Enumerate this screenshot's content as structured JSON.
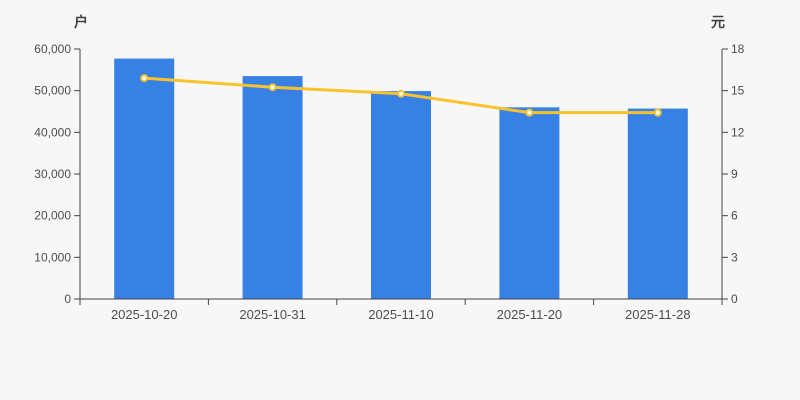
{
  "axes_units": {
    "left": "户",
    "right": "元"
  },
  "left_tick_labels": [
    "0",
    "10,000",
    "20,000",
    "30,000",
    "40,000",
    "50,000",
    "60,000"
  ],
  "right_tick_labels": [
    "0",
    "3",
    "6",
    "9",
    "12",
    "15",
    "18"
  ],
  "colors": {
    "background": "#f7f7f7",
    "bar": "#3780e4",
    "line": "#f9c22e",
    "marker_fill": "#ffffff",
    "axis": "#444444",
    "text": "#4d4d4d"
  },
  "chart_data": {
    "type": "bar",
    "subtype": "bar-line-combo",
    "categories": [
      "2025-10-20",
      "2025-10-31",
      "2025-11-10",
      "2025-11-20",
      "2025-11-28"
    ],
    "series": [
      {
        "name": "households",
        "type": "bar",
        "axis": "left",
        "unit": "户",
        "color": "#3780e4",
        "values": [
          57700,
          53500,
          49900,
          46000,
          45700
        ]
      },
      {
        "name": "price",
        "type": "line",
        "axis": "right",
        "unit": "元",
        "color": "#f9c22e",
        "values": [
          15.9,
          15.25,
          14.78,
          13.42,
          13.42
        ]
      }
    ],
    "left_axis": {
      "label": "户",
      "min": 0,
      "max": 60000,
      "tick_step": 10000
    },
    "right_axis": {
      "label": "元",
      "min": 0,
      "max": 18,
      "tick_step": 3
    },
    "grid": false,
    "legend": false,
    "title": ""
  }
}
